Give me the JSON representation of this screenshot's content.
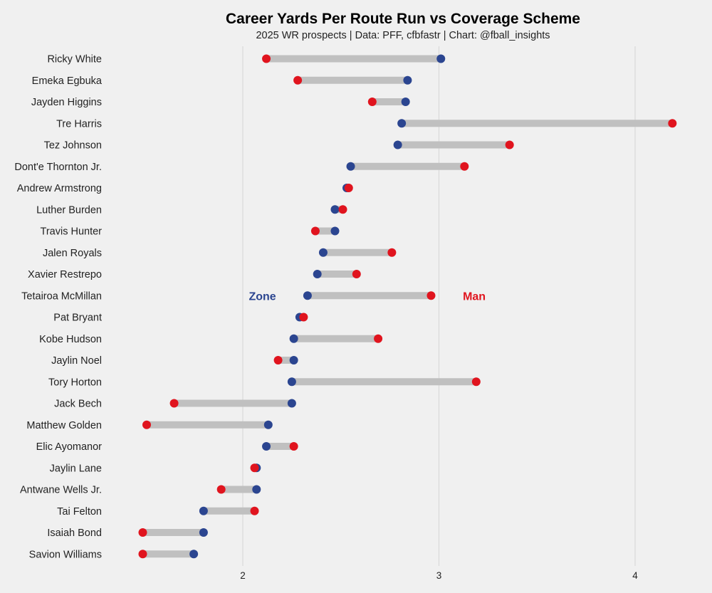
{
  "chart_data": {
    "type": "dumbbell",
    "title": "Career Yards Per Route Run vs Coverage Scheme",
    "subtitle": "2025 WR prospects | Data: PFF, cfbfastr | Chart: @fball_insights",
    "xlim": [
      1.45,
      4.3
    ],
    "xticks": [
      2,
      3,
      4
    ],
    "grid": "vertical",
    "colors": {
      "zone": "#2b4590",
      "man": "#e0141e",
      "connector": "#c0c0c0",
      "background": "#f0f0f0",
      "grid": "#d9d9d9"
    },
    "annotations": [
      {
        "label": "Zone",
        "series": "zone",
        "x": 2.1,
        "row": 11
      },
      {
        "label": "Man",
        "series": "man",
        "x": 3.18,
        "row": 11
      }
    ],
    "players": [
      {
        "name": "Ricky White",
        "zone": 3.01,
        "man": 2.12
      },
      {
        "name": "Emeka Egbuka",
        "zone": 2.84,
        "man": 2.28
      },
      {
        "name": "Jayden Higgins",
        "zone": 2.83,
        "man": 2.66
      },
      {
        "name": "Tre Harris",
        "zone": 2.81,
        "man": 4.19
      },
      {
        "name": "Tez Johnson",
        "zone": 2.79,
        "man": 3.36
      },
      {
        "name": "Dont'e Thornton Jr.",
        "zone": 2.55,
        "man": 3.13
      },
      {
        "name": "Andrew Armstrong",
        "zone": 2.53,
        "man": 2.54
      },
      {
        "name": "Luther Burden",
        "zone": 2.47,
        "man": 2.51
      },
      {
        "name": "Travis Hunter",
        "zone": 2.47,
        "man": 2.37
      },
      {
        "name": "Jalen Royals",
        "zone": 2.41,
        "man": 2.76
      },
      {
        "name": "Xavier Restrepo",
        "zone": 2.38,
        "man": 2.58
      },
      {
        "name": "Tetairoa McMillan",
        "zone": 2.33,
        "man": 2.96
      },
      {
        "name": "Pat Bryant",
        "zone": 2.29,
        "man": 2.31
      },
      {
        "name": "Kobe Hudson",
        "zone": 2.26,
        "man": 2.69
      },
      {
        "name": "Jaylin Noel",
        "zone": 2.26,
        "man": 2.18
      },
      {
        "name": "Tory Horton",
        "zone": 2.25,
        "man": 3.19
      },
      {
        "name": "Jack Bech",
        "zone": 2.25,
        "man": 1.65
      },
      {
        "name": "Matthew Golden",
        "zone": 2.13,
        "man": 1.51
      },
      {
        "name": "Elic Ayomanor",
        "zone": 2.12,
        "man": 2.26
      },
      {
        "name": "Jaylin Lane",
        "zone": 2.07,
        "man": 2.06
      },
      {
        "name": "Antwane Wells Jr.",
        "zone": 2.07,
        "man": 1.89
      },
      {
        "name": "Tai Felton",
        "zone": 1.8,
        "man": 2.06
      },
      {
        "name": "Isaiah Bond",
        "zone": 1.8,
        "man": 1.49
      },
      {
        "name": "Savion Williams",
        "zone": 1.75,
        "man": 1.49
      }
    ]
  }
}
